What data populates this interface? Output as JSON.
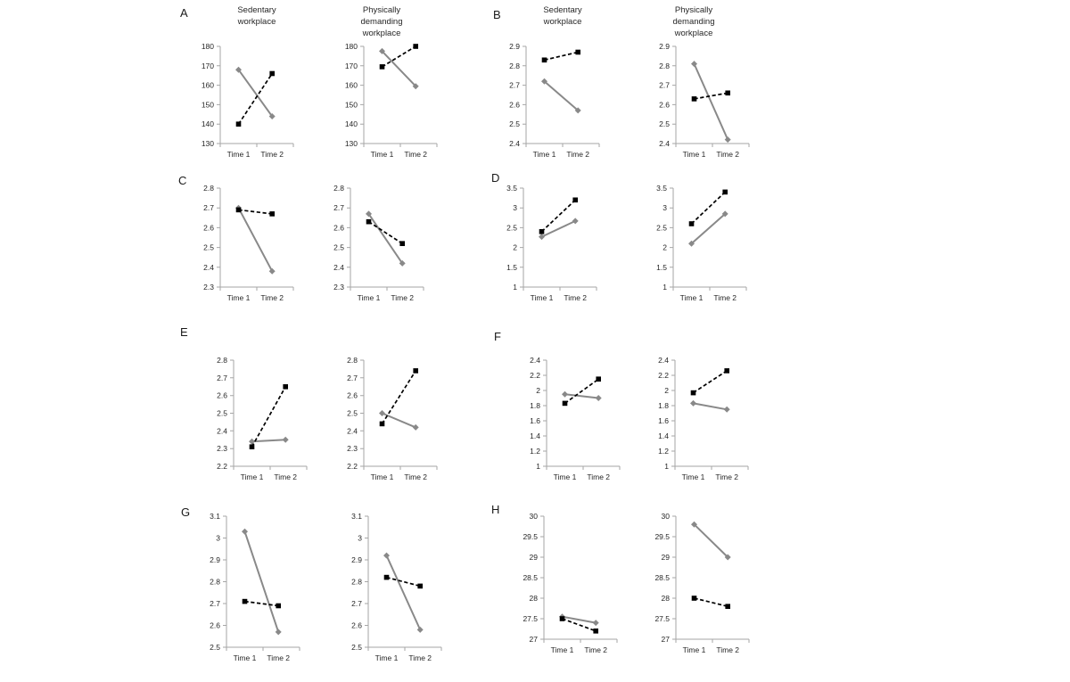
{
  "colors": {
    "background": "#ffffff",
    "dashed_series": "#000000",
    "solid_series": "#898989",
    "axis_line": "#a6a6a6",
    "text": "#262626"
  },
  "chart_data": {
    "type": "line",
    "x_categories": [
      "Time 1",
      "Time 2"
    ],
    "series_styles": [
      {
        "key": "dashed",
        "line": "dashed black",
        "marker": "square"
      },
      {
        "key": "solid",
        "line": "solid gray",
        "marker": "diamond"
      }
    ],
    "column_titles": {
      "left": "Sedentary\nworkplace",
      "right": "Physically\ndemanding\nworkplace"
    },
    "panels": [
      {
        "label": "A",
        "charts": [
          {
            "title": "Sedentary\nworkplace",
            "y_max": 180,
            "y_min": 130,
            "y_tick_labels": [
              "180",
              "170",
              "160",
              "150",
              "140",
              "130"
            ],
            "x_tick_labels": [
              "Time 1",
              "Time 2"
            ],
            "series": {
              "dashed": [
                140,
                166
              ],
              "solid": [
                168,
                144
              ]
            }
          },
          {
            "title": "Physically\ndemanding\nworkplace",
            "y_max": 180,
            "y_min": 130,
            "y_tick_labels": [
              "180",
              "170",
              "160",
              "150",
              "140",
              "130"
            ],
            "x_tick_labels": [
              "Time 1",
              "Time 2"
            ],
            "series": {
              "dashed": [
                169.5,
                180
              ],
              "solid": [
                177.5,
                159.5
              ]
            }
          }
        ]
      },
      {
        "label": "B",
        "charts": [
          {
            "title": "Sedentary\nworkplace",
            "y_max": 2.9,
            "y_min": 2.4,
            "y_tick_labels": [
              "2.9",
              "2.8",
              "2.7",
              "2.6",
              "2.5",
              "2.4"
            ],
            "x_tick_labels": [
              "Time 1",
              "Time 2"
            ],
            "series": {
              "dashed": [
                2.83,
                2.87
              ],
              "solid": [
                2.72,
                2.57
              ]
            }
          },
          {
            "title": "Physically\ndemanding\nworkplace",
            "y_max": 2.9,
            "y_min": 2.4,
            "y_tick_labels": [
              "2.9",
              "2.8",
              "2.7",
              "2.6",
              "2.5",
              "2.4"
            ],
            "x_tick_labels": [
              "Time 1",
              "Time 2"
            ],
            "series": {
              "dashed": [
                2.63,
                2.66
              ],
              "solid": [
                2.81,
                2.42
              ]
            }
          }
        ]
      },
      {
        "label": "C",
        "charts": [
          {
            "y_max": 2.8,
            "y_min": 2.3,
            "y_tick_labels": [
              "2.8",
              "2.7",
              "2.6",
              "2.5",
              "2.4",
              "2.3"
            ],
            "x_tick_labels": [
              "Time 1",
              "Time 2"
            ],
            "series": {
              "dashed": [
                2.69,
                2.67
              ],
              "solid": [
                2.7,
                2.38
              ]
            }
          },
          {
            "y_max": 2.8,
            "y_min": 2.3,
            "y_tick_labels": [
              "2.8",
              "2.7",
              "2.6",
              "2.5",
              "2.4",
              "2.3"
            ],
            "x_tick_labels": [
              "Time 1",
              "Time 2"
            ],
            "series": {
              "dashed": [
                2.63,
                2.52
              ],
              "solid": [
                2.67,
                2.42
              ]
            }
          }
        ]
      },
      {
        "label": "D",
        "charts": [
          {
            "y_max": 3.5,
            "y_min": 1,
            "y_tick_labels": [
              "3.5",
              "3",
              "2.5",
              "2",
              "1.5",
              "1"
            ],
            "x_tick_labels": [
              "Time 1",
              "Time 2"
            ],
            "series": {
              "dashed": [
                2.4,
                3.2
              ],
              "solid": [
                2.27,
                2.67
              ]
            }
          },
          {
            "y_max": 3.5,
            "y_min": 1,
            "y_tick_labels": [
              "3.5",
              "3",
              "2.5",
              "2",
              "1.5",
              "1"
            ],
            "x_tick_labels": [
              "Time 1",
              "Time 2"
            ],
            "series": {
              "dashed": [
                2.6,
                3.4
              ],
              "solid": [
                2.1,
                2.85
              ]
            }
          }
        ]
      },
      {
        "label": "E",
        "charts": [
          {
            "y_max": 2.8,
            "y_min": 2.2,
            "y_tick_labels": [
              "2.8",
              "2.7",
              "2.6",
              "2.5",
              "2.4",
              "2.3",
              "2.2"
            ],
            "x_tick_labels": [
              "Time 1",
              "Time 2"
            ],
            "series": {
              "dashed": [
                2.31,
                2.65
              ],
              "solid": [
                2.34,
                2.35
              ]
            }
          },
          {
            "y_max": 2.8,
            "y_min": 2.2,
            "y_tick_labels": [
              "2.8",
              "2.7",
              "2.6",
              "2.5",
              "2.4",
              "2.3",
              "2.2"
            ],
            "x_tick_labels": [
              "Time 1",
              "Time 2"
            ],
            "series": {
              "dashed": [
                2.44,
                2.74
              ],
              "solid": [
                2.5,
                2.42
              ]
            }
          }
        ]
      },
      {
        "label": "F",
        "charts": [
          {
            "y_max": 2.4,
            "y_min": 1,
            "y_tick_labels": [
              "2.4",
              "2.2",
              "2",
              "1.8",
              "1.6",
              "1.4",
              "1.2",
              "1"
            ],
            "x_tick_labels": [
              "Time 1",
              "Time 2"
            ],
            "series": {
              "dashed": [
                1.83,
                2.15
              ],
              "solid": [
                1.95,
                1.9
              ]
            }
          },
          {
            "y_max": 2.4,
            "y_min": 1,
            "y_tick_labels": [
              "2.4",
              "2.2",
              "2",
              "1.8",
              "1.6",
              "1.4",
              "1.2",
              "1"
            ],
            "x_tick_labels": [
              "Time 1",
              "Time 2"
            ],
            "series": {
              "dashed": [
                1.97,
                2.26
              ],
              "solid": [
                1.83,
                1.75
              ]
            }
          }
        ]
      },
      {
        "label": "G",
        "charts": [
          {
            "y_max": 3.1,
            "y_min": 2.5,
            "y_tick_labels": [
              "3.1",
              "3",
              "2.9",
              "2.8",
              "2.7",
              "2.6",
              "2.5"
            ],
            "x_tick_labels": [
              "Time 1",
              "Time 2"
            ],
            "series": {
              "dashed": [
                2.71,
                2.69
              ],
              "solid": [
                3.03,
                2.57
              ]
            }
          },
          {
            "y_max": 3.1,
            "y_min": 2.5,
            "y_tick_labels": [
              "3.1",
              "3",
              "2.9",
              "2.8",
              "2.7",
              "2.6",
              "2.5"
            ],
            "x_tick_labels": [
              "Time 1",
              "Time 2"
            ],
            "series": {
              "dashed": [
                2.82,
                2.78
              ],
              "solid": [
                2.92,
                2.58
              ]
            }
          }
        ]
      },
      {
        "label": "H",
        "charts": [
          {
            "y_max": 30,
            "y_min": 27,
            "y_tick_labels": [
              "30",
              "29.5",
              "29",
              "28.5",
              "28",
              "27.5",
              "27"
            ],
            "x_tick_labels": [
              "Time 1",
              "Time 2"
            ],
            "series": {
              "dashed": [
                27.5,
                27.2
              ],
              "solid": [
                27.55,
                27.4
              ]
            }
          },
          {
            "y_max": 30,
            "y_min": 27,
            "y_tick_labels": [
              "30",
              "29.5",
              "29",
              "28.5",
              "28",
              "27.5",
              "27"
            ],
            "x_tick_labels": [
              "Time 1",
              "Time 2"
            ],
            "series": {
              "dashed": [
                28,
                27.8
              ],
              "solid": [
                29.8,
                29
              ]
            }
          }
        ]
      }
    ]
  }
}
